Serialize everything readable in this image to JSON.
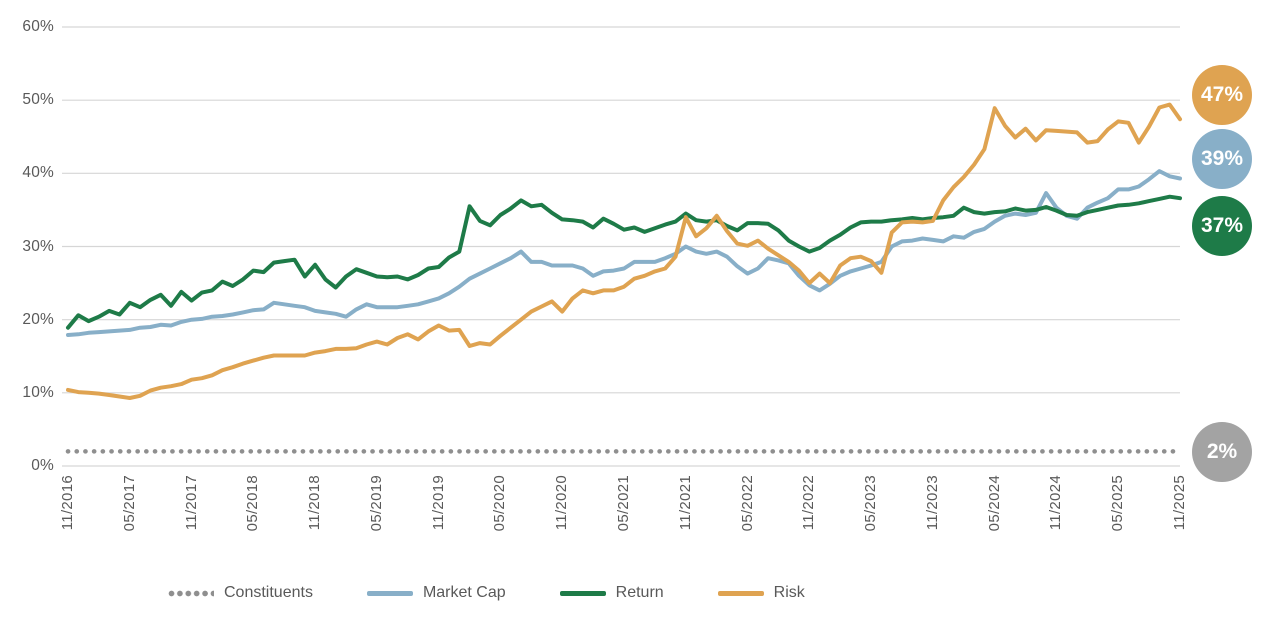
{
  "chart_data": {
    "type": "line",
    "title": "",
    "x_frequency": "monthly",
    "x_start": "11/2016",
    "x_end": "11/2025",
    "x_tick_labels": [
      "11/2016",
      "05/2017",
      "11/2017",
      "05/2018",
      "11/2018",
      "05/2019",
      "11/2019",
      "05/2020",
      "11/2020",
      "05/2021",
      "11/2021",
      "05/2022",
      "11/2022",
      "05/2023",
      "11/2023",
      "05/2024",
      "11/2024",
      "05/2025",
      "11/2025"
    ],
    "y_tick_labels": [
      "0%",
      "10%",
      "20%",
      "30%",
      "40%",
      "50%",
      "60%"
    ],
    "ylim": [
      0,
      60
    ],
    "grid": "horizontal",
    "legend_position": "bottom",
    "colors": {
      "grid": "#d6d6d6",
      "axis_text": "#595959",
      "constituents": "#8f8f8f",
      "constituents_badge": "#a3a3a3",
      "market_cap": "#88afc8",
      "return": "#1e7b48",
      "risk": "#dfa351"
    },
    "series": [
      {
        "name": "Constituents",
        "style": "dotted",
        "color": "#8f8f8f",
        "badge_color": "#a3a3a3",
        "constant_value": 2.0,
        "end_label": "2%"
      },
      {
        "name": "Market Cap",
        "style": "solid",
        "color": "#88afc8",
        "badge_color": "#88afc8",
        "end_label": "39%",
        "values": [
          17.9,
          18.0,
          18.2,
          18.3,
          18.4,
          18.5,
          18.6,
          18.9,
          19.0,
          19.3,
          19.2,
          19.7,
          20.0,
          20.1,
          20.4,
          20.5,
          20.7,
          21.0,
          21.3,
          21.4,
          22.3,
          22.1,
          21.9,
          21.7,
          21.2,
          21.0,
          20.8,
          20.4,
          21.4,
          22.1,
          21.7,
          21.7,
          21.7,
          21.9,
          22.1,
          22.5,
          22.9,
          23.6,
          24.5,
          25.6,
          26.3,
          27.0,
          27.7,
          28.4,
          29.3,
          27.9,
          27.9,
          27.4,
          27.4,
          27.4,
          27.0,
          26.0,
          26.6,
          26.7,
          27.0,
          27.9,
          27.9,
          27.9,
          28.4,
          29.0,
          30.0,
          29.3,
          29.0,
          29.3,
          28.6,
          27.3,
          26.3,
          27.0,
          28.4,
          28.1,
          27.7,
          26.0,
          24.7,
          24.0,
          24.9,
          26.0,
          26.6,
          27.0,
          27.4,
          27.9,
          30.0,
          30.7,
          30.8,
          31.1,
          30.9,
          30.7,
          31.4,
          31.2,
          32.0,
          32.4,
          33.4,
          34.2,
          34.5,
          34.3,
          34.6,
          37.3,
          35.3,
          34.2,
          33.8,
          35.3,
          36.0,
          36.6,
          37.8,
          37.8,
          38.2,
          39.2,
          40.3,
          39.6,
          39.3
        ]
      },
      {
        "name": "Return",
        "style": "solid",
        "color": "#1e7b48",
        "badge_color": "#1e7b48",
        "end_label": "37%",
        "values": [
          18.9,
          20.6,
          19.8,
          20.4,
          21.2,
          20.7,
          22.3,
          21.7,
          22.7,
          23.4,
          21.9,
          23.8,
          22.6,
          23.7,
          24.0,
          25.2,
          24.6,
          25.5,
          26.7,
          26.5,
          27.8,
          28.0,
          28.2,
          25.9,
          27.5,
          25.5,
          24.4,
          25.9,
          26.9,
          26.4,
          25.9,
          25.8,
          25.9,
          25.5,
          26.1,
          27.0,
          27.2,
          28.5,
          29.3,
          35.5,
          33.5,
          32.9,
          34.3,
          35.2,
          36.3,
          35.5,
          35.7,
          34.6,
          33.7,
          33.6,
          33.4,
          32.6,
          33.8,
          33.1,
          32.3,
          32.6,
          32.0,
          32.5,
          33.0,
          33.4,
          34.5,
          33.6,
          33.4,
          33.6,
          32.8,
          32.2,
          33.2,
          33.2,
          33.1,
          32.2,
          30.8,
          30.0,
          29.3,
          29.8,
          30.8,
          31.6,
          32.6,
          33.3,
          33.4,
          33.4,
          33.6,
          33.7,
          33.9,
          33.7,
          33.9,
          34.0,
          34.2,
          35.3,
          34.7,
          34.5,
          34.7,
          34.8,
          35.2,
          34.9,
          35.0,
          35.4,
          34.9,
          34.3,
          34.2,
          34.7,
          35.0,
          35.3,
          35.6,
          35.7,
          35.9,
          36.2,
          36.5,
          36.8,
          36.6
        ]
      },
      {
        "name": "Risk",
        "style": "solid",
        "color": "#dfa351",
        "badge_color": "#dfa351",
        "end_label": "47%",
        "values": [
          10.4,
          10.1,
          10.0,
          9.9,
          9.7,
          9.5,
          9.3,
          9.6,
          10.3,
          10.7,
          10.9,
          11.2,
          11.8,
          12.0,
          12.4,
          13.1,
          13.5,
          14.0,
          14.4,
          14.8,
          15.1,
          15.1,
          15.1,
          15.1,
          15.5,
          15.7,
          16.0,
          16.0,
          16.1,
          16.6,
          17.0,
          16.6,
          17.5,
          18.0,
          17.3,
          18.4,
          19.2,
          18.5,
          18.6,
          16.4,
          16.8,
          16.6,
          17.8,
          18.9,
          20.0,
          21.1,
          21.8,
          22.5,
          21.1,
          22.9,
          24.0,
          23.6,
          24.0,
          24.0,
          24.5,
          25.6,
          26.0,
          26.6,
          27.0,
          28.6,
          34.0,
          31.4,
          32.5,
          34.2,
          32.1,
          30.4,
          30.1,
          30.8,
          29.7,
          28.8,
          27.9,
          26.7,
          25.0,
          26.3,
          25.0,
          27.4,
          28.4,
          28.6,
          28.0,
          26.4,
          31.9,
          33.3,
          33.4,
          33.3,
          33.5,
          36.3,
          38.1,
          39.5,
          41.2,
          43.3,
          48.9,
          46.5,
          44.9,
          46.1,
          44.5,
          45.9,
          45.8,
          45.7,
          45.6,
          44.2,
          44.4,
          46.0,
          47.1,
          46.9,
          44.2,
          46.4,
          49.0,
          49.4,
          47.4
        ]
      }
    ]
  },
  "legend": {
    "items": [
      {
        "label": "Constituents"
      },
      {
        "label": "Market Cap"
      },
      {
        "label": "Return"
      },
      {
        "label": "Risk"
      }
    ]
  }
}
